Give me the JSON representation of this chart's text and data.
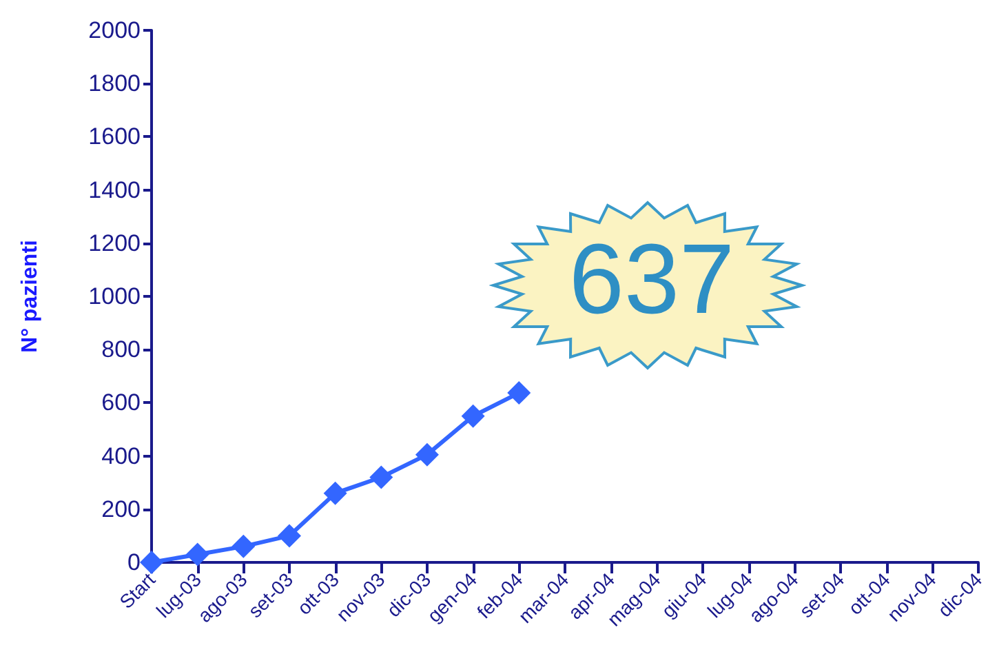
{
  "chart_data": {
    "type": "line",
    "ylabel": "N° pazienti",
    "categories": [
      "Start",
      "lug-03",
      "ago-03",
      "set-03",
      "ott-03",
      "nov-03",
      "dic-03",
      "gen-04",
      "feb-04",
      "mar-04",
      "apr-04",
      "mag-04",
      "giu-04",
      "lug-04",
      "ago-04",
      "set-04",
      "ott-04",
      "nov-04",
      "dic-04"
    ],
    "series": [
      {
        "color": "#3366ff",
        "values": [
          0,
          30,
          60,
          100,
          260,
          320,
          405,
          550,
          637,
          null,
          null,
          null,
          null,
          null,
          null,
          null,
          null,
          null,
          null
        ]
      }
    ],
    "ylim": [
      0,
      2000
    ],
    "yticks": [
      0,
      200,
      400,
      600,
      800,
      1000,
      1200,
      1400,
      1600,
      1800,
      2000
    ],
    "marker": "diamond",
    "line_style": "solid",
    "grid": false,
    "annotations": [
      "637"
    ]
  }
}
